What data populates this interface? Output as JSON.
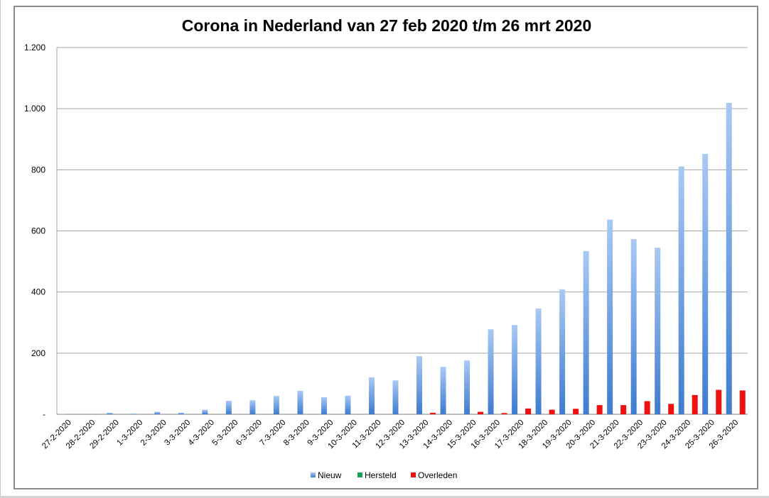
{
  "chart_data": {
    "type": "bar",
    "title": "Corona in Nederland van 27 feb 2020 t/m 26 mrt 2020",
    "xlabel": "",
    "ylabel": "",
    "ylim": [
      0,
      1200
    ],
    "yticks": [
      0,
      200,
      400,
      600,
      800,
      1000,
      1200
    ],
    "ytick_labels": [
      "-",
      "200",
      "400",
      "600",
      "800",
      "1.000",
      "1.200"
    ],
    "grid": true,
    "legend_position": "bottom",
    "categories": [
      "27-2-2020",
      "28-2-2020",
      "29-2-2020",
      "1-3-2020",
      "2-3-2020",
      "3-3-2020",
      "4-3-2020",
      "5-3-2020",
      "6-3-2020",
      "7-3-2020",
      "8-3-2020",
      "9-3-2020",
      "10-3-2020",
      "11-3-2020",
      "12-3-2020",
      "13-3-2020",
      "14-3-2020",
      "15-3-2020",
      "16-3-2020",
      "17-3-2020",
      "18-3-2020",
      "19-3-2020",
      "20-3-2020",
      "21-3-2020",
      "22-3-2020",
      "23-3-2020",
      "24-3-2020",
      "25-3-2020",
      "26-3-2020"
    ],
    "series": [
      {
        "name": "Nieuw",
        "color": "#4f86d4",
        "values": [
          1,
          0,
          5,
          2,
          8,
          5,
          15,
          44,
          46,
          60,
          77,
          56,
          61,
          121,
          111,
          190,
          155,
          176,
          278,
          292,
          346,
          409,
          534,
          637,
          573,
          545,
          811,
          852,
          1019
        ]
      },
      {
        "name": "Hersteld",
        "color": "#1aa050",
        "values": [
          0,
          0,
          0,
          0,
          0,
          0,
          0,
          0,
          0,
          0,
          0,
          0,
          0,
          0,
          0,
          0,
          0,
          0,
          0,
          0,
          0,
          0,
          0,
          0,
          0,
          0,
          0,
          0,
          0
        ]
      },
      {
        "name": "Overleden",
        "color": "#ee1111",
        "values": [
          0,
          0,
          0,
          0,
          0,
          0,
          0,
          0,
          0,
          0,
          0,
          0,
          0,
          0,
          0,
          5,
          0,
          8,
          4,
          19,
          15,
          18,
          30,
          30,
          43,
          34,
          63,
          80,
          78
        ]
      }
    ]
  }
}
